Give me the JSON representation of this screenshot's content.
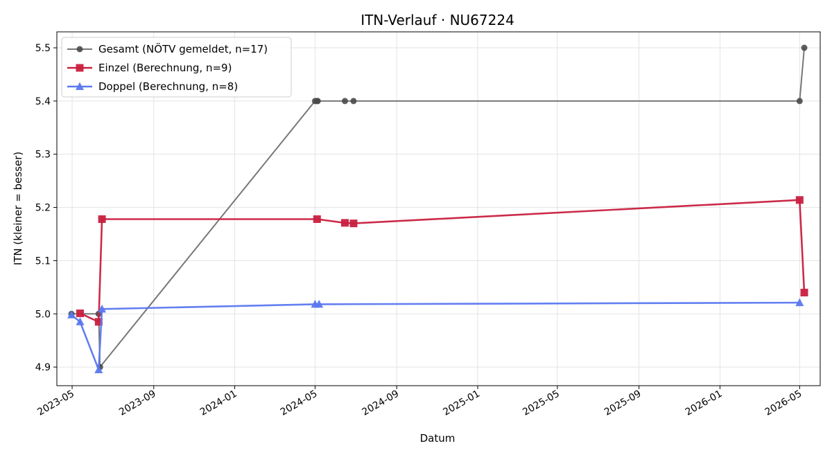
{
  "chart_data": {
    "type": "line",
    "title": "ITN-Verlauf · NU67224",
    "xlabel": "Datum",
    "ylabel": "ITN  (kleiner = besser)",
    "ylim": [
      4.865,
      5.53
    ],
    "xlim": [
      "2023-04-08",
      "2026-06-01"
    ],
    "x_scale": "date",
    "y_ticks": [
      "4.9",
      "5.0",
      "5.1",
      "5.2",
      "5.3",
      "5.4",
      "5.5"
    ],
    "x_ticks": [
      "2023-05",
      "2023-09",
      "2024-01",
      "2024-05",
      "2024-09",
      "2025-01",
      "2025-05",
      "2025-09",
      "2026-01",
      "2026-05"
    ],
    "grid": true,
    "legend_position": "top-left",
    "series": [
      {
        "name": "Gesamt (NÖTV gemeldet, n=17)",
        "color": "#777777",
        "marker": "circle",
        "points": [
          {
            "x": "2023-04-30",
            "y": 5.0
          },
          {
            "x": "2023-06-10",
            "y": 5.0
          },
          {
            "x": "2023-06-12",
            "y": 4.9
          },
          {
            "x": "2024-05-01",
            "y": 5.4
          },
          {
            "x": "2024-05-04",
            "y": 5.4
          },
          {
            "x": "2024-05-05",
            "y": 5.4
          },
          {
            "x": "2024-06-15",
            "y": 5.4
          },
          {
            "x": "2024-06-28",
            "y": 5.4
          },
          {
            "x": "2026-05-01",
            "y": 5.4
          },
          {
            "x": "2026-05-08",
            "y": 5.5
          }
        ]
      },
      {
        "name": "Einzel (Berechnung, n=9)",
        "color": "#c8203f",
        "marker": "square",
        "points": [
          {
            "x": "2023-05-13",
            "y": 5.001
          },
          {
            "x": "2023-06-10",
            "y": 4.985
          },
          {
            "x": "2023-06-15",
            "y": 5.178
          },
          {
            "x": "2024-05-04",
            "y": 5.178
          },
          {
            "x": "2024-06-15",
            "y": 5.171
          },
          {
            "x": "2024-06-28",
            "y": 5.17
          },
          {
            "x": "2026-05-01",
            "y": 5.214
          },
          {
            "x": "2026-05-08",
            "y": 5.04
          }
        ]
      },
      {
        "name": "Doppel (Berechnung, n=8)",
        "color": "#5a78f0",
        "marker": "triangle",
        "points": [
          {
            "x": "2023-04-30",
            "y": 4.998
          },
          {
            "x": "2023-05-13",
            "y": 4.985
          },
          {
            "x": "2023-06-10",
            "y": 4.895
          },
          {
            "x": "2023-06-15",
            "y": 5.009
          },
          {
            "x": "2024-05-01",
            "y": 5.018
          },
          {
            "x": "2024-05-07",
            "y": 5.018
          },
          {
            "x": "2026-05-01",
            "y": 5.021
          }
        ]
      }
    ]
  }
}
